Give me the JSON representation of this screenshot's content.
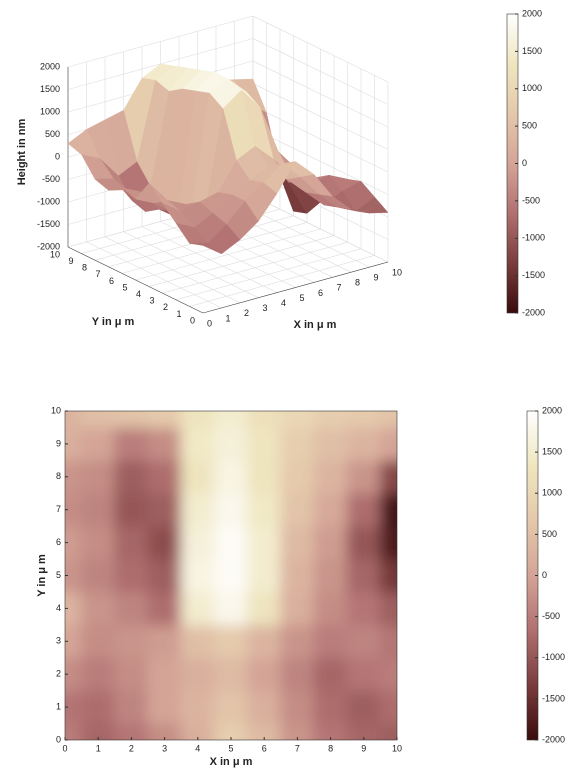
{
  "chart_data": [
    {
      "type": "surface3d",
      "xlabel": "X in μ m",
      "ylabel": "Y in μ m",
      "zlabel": "Height in nm",
      "xlim": [
        0,
        10
      ],
      "ylim": [
        0,
        10
      ],
      "zlim": [
        -2000,
        2000
      ],
      "xticks": [
        0,
        1,
        2,
        3,
        4,
        5,
        6,
        7,
        8,
        9,
        10
      ],
      "yticks": [
        0,
        1,
        2,
        3,
        4,
        5,
        6,
        7,
        8,
        9,
        10
      ],
      "zticks": [
        -2000,
        -1500,
        -1000,
        -500,
        0,
        500,
        1000,
        1500,
        2000
      ],
      "x": [
        0,
        1,
        2,
        3,
        4,
        5,
        6,
        7,
        8,
        9,
        10
      ],
      "y": [
        0,
        1,
        2,
        3,
        4,
        5,
        6,
        7,
        8,
        9,
        10
      ],
      "z": [
        [
          -500,
          -800,
          -600,
          -300,
          200,
          800,
          400,
          -200,
          -600,
          -800,
          -900
        ],
        [
          -600,
          -700,
          -400,
          0,
          300,
          600,
          200,
          -300,
          -700,
          -900,
          -700
        ],
        [
          -300,
          -500,
          -300,
          0,
          200,
          400,
          0,
          -400,
          -800,
          -600,
          -500
        ],
        [
          0,
          -300,
          -200,
          -100,
          500,
          700,
          300,
          -200,
          -500,
          -400,
          -600
        ],
        [
          300,
          -200,
          -400,
          -700,
          1500,
          1800,
          1300,
          200,
          -300,
          -600,
          -900
        ],
        [
          -200,
          -400,
          -700,
          -900,
          1700,
          1900,
          1500,
          300,
          -200,
          -800,
          -1400
        ],
        [
          -100,
          -300,
          -800,
          -1100,
          1600,
          1900,
          1500,
          400,
          -100,
          -1000,
          -1800
        ],
        [
          -300,
          -400,
          -1000,
          -900,
          1500,
          1800,
          1400,
          600,
          100,
          -700,
          -1900
        ],
        [
          -200,
          -300,
          -900,
          -700,
          1300,
          1700,
          1300,
          700,
          300,
          -200,
          -1200
        ],
        [
          200,
          0,
          -500,
          -300,
          1400,
          1600,
          1300,
          800,
          500,
          300,
          0
        ],
        [
          300,
          500,
          600,
          700,
          1300,
          1500,
          1200,
          1000,
          800,
          700,
          600
        ]
      ],
      "colormap": [
        "#3a0c0c",
        "#7a3c3c",
        "#b07070",
        "#d4a497",
        "#e4c8ab",
        "#efe6bf",
        "#ffffff"
      ],
      "clim": [
        -2000,
        2000
      ],
      "colorbar_ticks": [
        -2000,
        -1500,
        -1000,
        -500,
        0,
        500,
        1000,
        1500,
        2000
      ],
      "grid": true
    },
    {
      "type": "heatmap",
      "xlabel": "X in μ m",
      "ylabel": "Y in μ m",
      "xlim": [
        0,
        10
      ],
      "ylim": [
        0,
        10
      ],
      "xticks": [
        0,
        1,
        2,
        3,
        4,
        5,
        6,
        7,
        8,
        9,
        10
      ],
      "yticks": [
        0,
        1,
        2,
        3,
        4,
        5,
        6,
        7,
        8,
        9,
        10
      ],
      "x": [
        0,
        1,
        2,
        3,
        4,
        5,
        6,
        7,
        8,
        9,
        10
      ],
      "y": [
        0,
        1,
        2,
        3,
        4,
        5,
        6,
        7,
        8,
        9,
        10
      ],
      "z": [
        [
          -500,
          -800,
          -600,
          -300,
          200,
          800,
          400,
          -200,
          -600,
          -800,
          -900
        ],
        [
          -600,
          -700,
          -400,
          0,
          300,
          600,
          200,
          -300,
          -700,
          -900,
          -700
        ],
        [
          -300,
          -500,
          -300,
          0,
          200,
          400,
          0,
          -400,
          -800,
          -600,
          -500
        ],
        [
          0,
          -300,
          -200,
          -100,
          500,
          700,
          300,
          -200,
          -500,
          -400,
          -600
        ],
        [
          300,
          -200,
          -400,
          -700,
          1500,
          1800,
          1300,
          200,
          -300,
          -600,
          -900
        ],
        [
          -200,
          -400,
          -700,
          -900,
          1700,
          1900,
          1500,
          300,
          -200,
          -800,
          -1400
        ],
        [
          -100,
          -300,
          -800,
          -1100,
          1600,
          1900,
          1500,
          400,
          -100,
          -1000,
          -1800
        ],
        [
          -300,
          -400,
          -1000,
          -900,
          1500,
          1800,
          1400,
          600,
          100,
          -700,
          -1900
        ],
        [
          -200,
          -300,
          -900,
          -700,
          1300,
          1700,
          1300,
          700,
          300,
          -200,
          -1200
        ],
        [
          200,
          0,
          -500,
          -300,
          1400,
          1600,
          1300,
          800,
          500,
          300,
          0
        ],
        [
          300,
          500,
          600,
          700,
          1300,
          1500,
          1200,
          1000,
          800,
          700,
          600
        ]
      ],
      "colormap": [
        "#3a0c0c",
        "#7a3c3c",
        "#b07070",
        "#d4a497",
        "#e4c8ab",
        "#efe6bf",
        "#ffffff"
      ],
      "clim": [
        -2000,
        2000
      ],
      "colorbar_ticks": [
        -2000,
        -1500,
        -1000,
        -500,
        0,
        500,
        1000,
        1500,
        2000
      ]
    }
  ]
}
